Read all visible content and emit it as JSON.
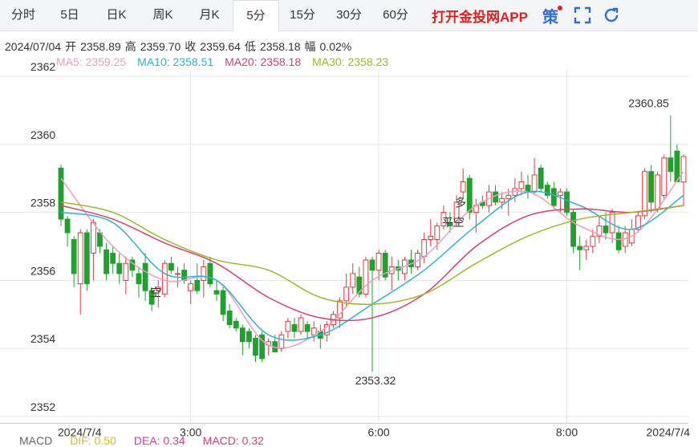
{
  "tabs": [
    "分时",
    "5日",
    "日K",
    "周K",
    "月K",
    "5分",
    "15分",
    "30分",
    "60分"
  ],
  "selected_tab": "5分",
  "app_link": "打开金投网APP",
  "tool_label": "策",
  "info": {
    "date": "2024/07/04",
    "fields": [
      {
        "label": "开",
        "value": "2358.89"
      },
      {
        "label": "高",
        "value": "2359.70"
      },
      {
        "label": "收",
        "value": "2359.64"
      },
      {
        "label": "低",
        "value": "2358.18"
      },
      {
        "label": "幅",
        "value": "0.02%"
      }
    ]
  },
  "indicator_bar": [
    "MACD",
    "DIF: 0.50",
    "DEA: 0.34",
    "MACD: 0.32"
  ],
  "chart_data": {
    "type": "candlestick",
    "up_color": "#e8383d",
    "down_color": "#1fa12e",
    "open": [
      2359.3,
      2357.8,
      2357.2,
      2355.9,
      2357.4,
      2356.8,
      2357.4,
      2356.9,
      2356.8,
      2356.5,
      2356.0,
      2356.6,
      2356.2,
      2356.5,
      2355.7,
      2355.7,
      2355.6,
      2356.5,
      2356.2,
      2356.3,
      2355.7,
      2356.0,
      2356.0,
      2356.5,
      2355.7,
      2355.7,
      2355.1,
      2354.8,
      2354.6,
      2354.5,
      2354.3,
      2354.4,
      2354.1,
      2354.2,
      2354.0,
      2354.5,
      2354.7,
      2354.5,
      2354.7,
      2354.4,
      2354.5,
      2354.4,
      2354.7,
      2354.9,
      2355.4,
      2355.8,
      2356.1,
      2355.6,
      2356.6,
      2356.3,
      2356.8,
      2356.2,
      2356.4,
      2356.2,
      2356.6,
      2356.4,
      2356.7,
      2357.2,
      2357.2,
      2357.6,
      2357.7,
      2357.7,
      2358.6,
      2359.0,
      2358.0,
      2358.3,
      2358.2,
      2358.6,
      2358.3,
      2358.4,
      2358.5,
      2358.7,
      2358.8,
      2358.6,
      2359.3,
      2358.8,
      2358.7,
      2358.5,
      2358.6,
      2358.0,
      2357.0,
      2356.9,
      2357.0,
      2357.3,
      2357.6,
      2357.4,
      2357.4,
      2357.0,
      2357.1,
      2357.5,
      2357.9,
      2359.2,
      2358.1,
      2358.5,
      2359.6,
      2359.8,
      2358.89
    ],
    "high": [
      2359.4,
      2357.9,
      2357.3,
      2357.5,
      2357.5,
      2357.8,
      2357.5,
      2357.1,
      2357.0,
      2356.8,
      2356.7,
      2356.7,
      2356.4,
      2356.8,
      2355.8,
      2356.0,
      2356.6,
      2356.7,
      2356.4,
      2356.5,
      2356.0,
      2356.5,
      2356.6,
      2356.7,
      2356.0,
      2355.8,
      2355.3,
      2354.9,
      2354.7,
      2354.6,
      2354.4,
      2354.5,
      2354.3,
      2354.4,
      2354.5,
      2354.9,
      2354.9,
      2355.0,
      2354.8,
      2354.8,
      2354.7,
      2354.8,
      2355.1,
      2355.5,
      2356.2,
      2356.5,
      2356.4,
      2356.7,
      2356.7,
      2356.9,
      2356.9,
      2356.7,
      2356.6,
      2356.7,
      2356.9,
      2356.9,
      2357.4,
      2357.8,
      2357.7,
      2358.2,
      2358.0,
      2358.5,
      2359.3,
      2359.1,
      2358.4,
      2358.5,
      2358.8,
      2358.8,
      2358.6,
      2358.7,
      2359.0,
      2359.2,
      2359.1,
      2359.6,
      2359.4,
      2358.9,
      2358.9,
      2358.7,
      2358.7,
      2358.1,
      2357.3,
      2357.2,
      2357.5,
      2357.9,
      2358.0,
      2358.1,
      2357.6,
      2357.6,
      2357.8,
      2358.0,
      2359.3,
      2359.4,
      2359.2,
      2359.7,
      2360.85,
      2360.0,
      2359.7
    ],
    "low": [
      2357.6,
      2357.0,
      2355.8,
      2355.0,
      2355.7,
      2356.0,
      2356.8,
      2356.0,
      2356.2,
      2355.9,
      2355.6,
      2356.1,
      2355.5,
      2355.4,
      2355.1,
      2355.2,
      2355.5,
      2356.2,
      2355.8,
      2355.9,
      2355.3,
      2355.6,
      2355.5,
      2355.8,
      2355.4,
      2354.8,
      2354.6,
      2354.5,
      2353.8,
      2354.0,
      2353.6,
      2353.6,
      2353.8,
      2353.9,
      2353.9,
      2354.3,
      2354.3,
      2354.4,
      2354.3,
      2354.2,
      2354.0,
      2354.2,
      2354.6,
      2354.6,
      2355.2,
      2355.6,
      2355.5,
      2355.5,
      2353.32,
      2356.0,
      2356.0,
      2355.7,
      2356.0,
      2356.0,
      2356.2,
      2356.3,
      2356.5,
      2357.0,
      2356.9,
      2357.5,
      2357.4,
      2357.6,
      2358.4,
      2357.8,
      2357.4,
      2358.1,
      2358.0,
      2358.2,
      2358.1,
      2357.9,
      2358.3,
      2358.5,
      2358.4,
      2358.5,
      2358.6,
      2358.4,
      2358.1,
      2358.0,
      2357.9,
      2356.8,
      2356.3,
      2356.6,
      2356.8,
      2357.1,
      2357.2,
      2357.1,
      2356.8,
      2356.8,
      2357.0,
      2357.4,
      2357.8,
      2358.0,
      2358.0,
      2358.4,
      2358.9,
      2358.9,
      2358.18
    ],
    "close": [
      2357.8,
      2357.4,
      2356.2,
      2357.4,
      2355.9,
      2357.7,
      2357.0,
      2356.2,
      2356.5,
      2356.2,
      2356.5,
      2356.3,
      2355.9,
      2355.7,
      2355.3,
      2355.8,
      2356.5,
      2356.3,
      2356.2,
      2356.0,
      2355.9,
      2355.7,
      2356.4,
      2355.9,
      2355.6,
      2355.0,
      2354.7,
      2354.6,
      2354.2,
      2354.2,
      2353.8,
      2353.7,
      2354.2,
      2353.9,
      2354.4,
      2354.8,
      2354.5,
      2354.9,
      2354.5,
      2354.6,
      2354.3,
      2354.7,
      2355.0,
      2355.4,
      2355.8,
      2356.2,
      2355.6,
      2356.6,
      2356.3,
      2356.8,
      2356.1,
      2356.4,
      2356.3,
      2356.6,
      2356.4,
      2356.8,
      2357.2,
      2357.3,
      2357.6,
      2358.0,
      2357.6,
      2358.3,
      2358.9,
      2358.0,
      2358.2,
      2358.2,
      2358.6,
      2358.3,
      2358.4,
      2358.5,
      2358.7,
      2358.9,
      2358.6,
      2359.1,
      2358.7,
      2358.5,
      2358.2,
      2358.6,
      2358.0,
      2357.0,
      2356.9,
      2357.0,
      2357.3,
      2357.6,
      2357.4,
      2358.0,
      2356.9,
      2357.4,
      2357.5,
      2357.9,
      2359.2,
      2358.3,
      2359.1,
      2359.6,
      2359.2,
      2358.9,
      2359.64
    ],
    "series": [
      {
        "name": "MA5: 2359.25",
        "color": "#ee9fbf",
        "x": [
          0,
          8,
          16,
          24,
          32,
          40,
          48,
          56,
          64,
          72,
          80,
          88,
          96
        ],
        "values": [
          2359.0,
          2357.0,
          2356.0,
          2356.0,
          2354.1,
          2354.5,
          2356.0,
          2356.7,
          2358.2,
          2358.6,
          2357.6,
          2357.3,
          2359.2
        ]
      },
      {
        "name": "MA10: 2358.51",
        "color": "#2bb3d3",
        "x": [
          0,
          8,
          16,
          24,
          32,
          40,
          48,
          56,
          64,
          72,
          80,
          88,
          96
        ],
        "values": [
          2358.0,
          2357.7,
          2356.2,
          2356.0,
          2354.4,
          2354.4,
          2355.3,
          2356.3,
          2357.6,
          2358.6,
          2358.2,
          2357.5,
          2358.5
        ]
      },
      {
        "name": "MA20: 2358.18",
        "color": "#d8406e",
        "x": [
          0,
          8,
          16,
          24,
          32,
          40,
          48,
          56,
          64,
          72,
          80,
          88,
          96
        ],
        "values": [
          2358.2,
          2357.8,
          2357.1,
          2356.5,
          2355.5,
          2354.9,
          2354.9,
          2355.6,
          2357.0,
          2357.9,
          2358.1,
          2358.0,
          2358.2
        ]
      },
      {
        "name": "MA30: 2358.23",
        "color": "#a3b52a",
        "x": [
          0,
          8,
          16,
          24,
          32,
          40,
          48,
          56,
          64,
          72,
          80,
          88,
          96
        ],
        "values": [
          2358.3,
          2358.0,
          2357.2,
          2356.6,
          2356.3,
          2355.5,
          2355.3,
          2355.6,
          2356.5,
          2357.3,
          2357.8,
          2358.0,
          2358.2
        ]
      }
    ],
    "ylim": [
      2351.8,
      2362.2
    ],
    "yticks": [
      2352,
      2354,
      2356,
      2358,
      2360,
      2362
    ],
    "xticks": [
      {
        "value": 0,
        "label": "2024/7/4"
      },
      {
        "value": 20,
        "label": "3:00"
      },
      {
        "value": 49,
        "label": "6:00"
      },
      {
        "value": 78,
        "label": "8:00"
      },
      {
        "value": 96,
        "label": "2024/7/4"
      }
    ],
    "grid": true,
    "signals": [
      {
        "label": "空",
        "index": 14
      },
      {
        "label": "平空",
        "index": 59
      },
      {
        "label": "多",
        "index": 61
      }
    ]
  }
}
